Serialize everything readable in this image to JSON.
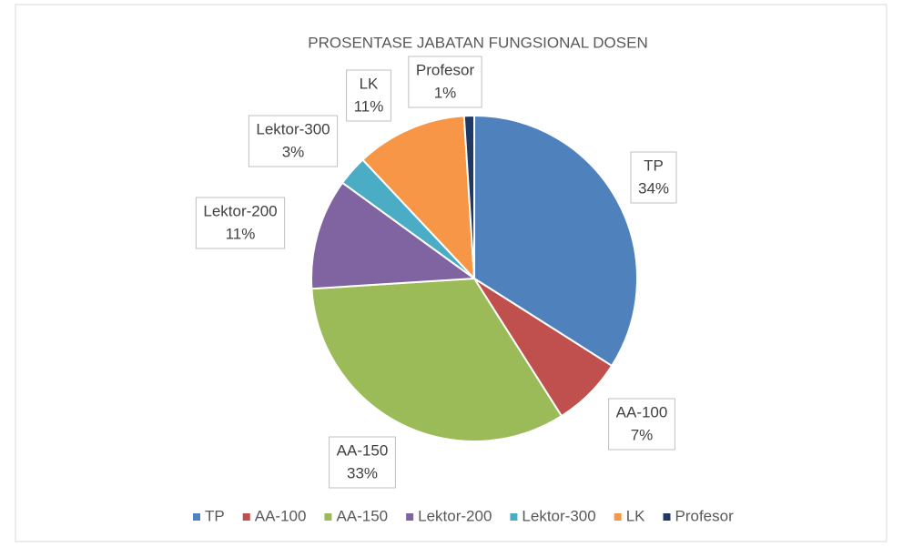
{
  "chart_data": {
    "type": "pie",
    "title": "PROSENTASE JABATAN FUNGSIONAL DOSEN",
    "categories": [
      "TP",
      "AA-100",
      "AA-150",
      "Lektor-200",
      "Lektor-300",
      "LK",
      "Profesor"
    ],
    "values": [
      34,
      7,
      33,
      11,
      3,
      11,
      1
    ],
    "value_labels": [
      "34%",
      "7%",
      "33%",
      "11%",
      "3%",
      "11%",
      "1%"
    ],
    "colors": [
      "#4f81bd",
      "#c0504d",
      "#9bbb59",
      "#8064a2",
      "#4bacc6",
      "#f79646",
      "#1f3864"
    ],
    "legend": "bottom"
  }
}
